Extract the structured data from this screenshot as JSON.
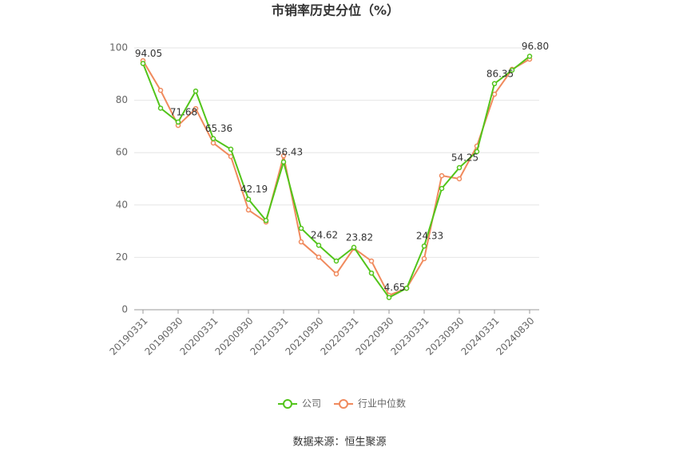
{
  "chart_data": {
    "type": "line",
    "title": "市销率历史分位（%）",
    "source": "数据来源：恒生聚源",
    "categories": [
      "20190331",
      null,
      "20190930",
      null,
      "20200331",
      null,
      "20200930",
      null,
      "20210331",
      null,
      "20210930",
      null,
      "20220331",
      null,
      "20220930",
      null,
      "20230331",
      null,
      "20230930",
      null,
      "20240331",
      null,
      "20240830"
    ],
    "series": [
      {
        "name": "公司",
        "color": "#52c41a",
        "values": [
          94.05,
          77,
          71.68,
          83.5,
          65.36,
          61.3,
          42.19,
          34.1,
          56.43,
          31.1,
          24.62,
          18.6,
          23.82,
          14.0,
          4.65,
          8.2,
          24.33,
          46.3,
          54.25,
          60.4,
          86.35,
          91.5,
          96.8
        ],
        "value_labels": [
          "94.05",
          null,
          "71.68",
          null,
          "65.36",
          null,
          "42.19",
          null,
          "56.43",
          null,
          "24.62",
          null,
          "23.82",
          null,
          "4.65",
          null,
          "24.33",
          null,
          "54.25",
          null,
          "86.35",
          null,
          "96.80"
        ]
      },
      {
        "name": "行业中位数",
        "color": "#f08a5d",
        "values": [
          95.1,
          83.8,
          70.4,
          76.8,
          63.7,
          58.5,
          38.1,
          33.5,
          58.8,
          25.9,
          20.1,
          13.7,
          23.5,
          18.6,
          5.5,
          8.2,
          19.5,
          51.2,
          50.0,
          62.5,
          82.3,
          91.8,
          95.7
        ]
      }
    ],
    "ylim": [
      0,
      100
    ],
    "yticks": [
      0,
      20,
      40,
      60,
      80,
      100
    ],
    "grid": true,
    "legend": "bottom"
  }
}
